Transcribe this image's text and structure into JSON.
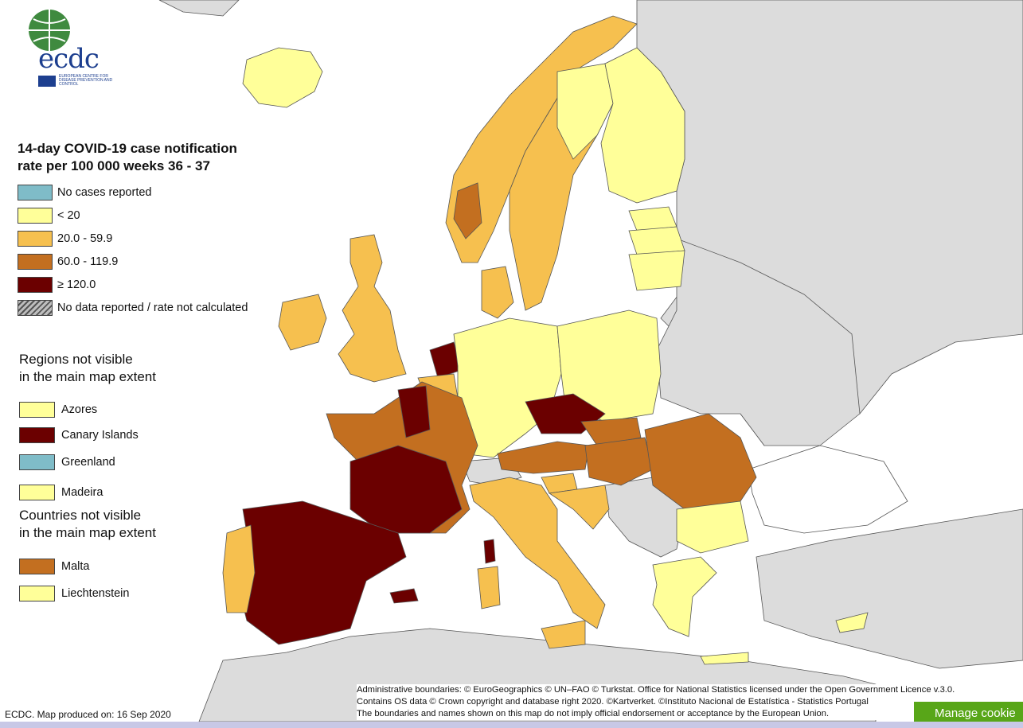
{
  "logo": {
    "name": "ecdc",
    "subtitle": "EUROPEAN CENTRE FOR DISEASE PREVENTION AND CONTROL"
  },
  "legend": {
    "title_line1": "14-day COVID-19 case notification",
    "title_line2": "rate per 100 000 weeks 36 - 37",
    "items": [
      {
        "label": "No cases reported",
        "color": "#7fbcc8"
      },
      {
        "label": "< 20",
        "color": "#ffff99"
      },
      {
        "label": "20.0 - 59.9",
        "color": "#f6c04f"
      },
      {
        "label": "60.0 - 119.9",
        "color": "#c36f20"
      },
      {
        "label": "≥ 120.0",
        "color": "#6b0000"
      },
      {
        "label": "No data reported / rate not calculated",
        "color": "hatched-grey"
      }
    ]
  },
  "regions_not_visible": {
    "title_line1": "Regions not visible",
    "title_line2": "in the main map extent",
    "items": [
      {
        "label": "Azores",
        "color": "#ffff99"
      },
      {
        "label": "Canary Islands",
        "color": "#6b0000"
      },
      {
        "label": "Greenland",
        "color": "#7fbcc8"
      },
      {
        "label": "Madeira",
        "color": "#ffff99"
      }
    ]
  },
  "countries_not_visible": {
    "title_line1": "Countries not visible",
    "title_line2": "in the main map extent",
    "items": [
      {
        "label": "Malta",
        "color": "#c36f20"
      },
      {
        "label": "Liechtenstein",
        "color": "#ffff99"
      }
    ]
  },
  "produced": "ECDC. Map produced on: 16 Sep 2020",
  "credits": {
    "line1": "Administrative boundaries: © EuroGeographics © UN–FAO © Turkstat.  Office for National Statistics licensed under the Open Government Licence v.3.0.",
    "line2": "Contains OS data © Crown copyright and database right 2020. ©Kartverket. ©Instituto Nacional de Estatística - Statistics Portugal",
    "line3": "The boundaries and names shown on this map do not imply official endorsement or acceptance by the European Union."
  },
  "cookie_button": "Manage cookie",
  "colors": {
    "sea": "#ffffff",
    "non_eu": "#dcdcdc",
    "border": "#555555"
  }
}
